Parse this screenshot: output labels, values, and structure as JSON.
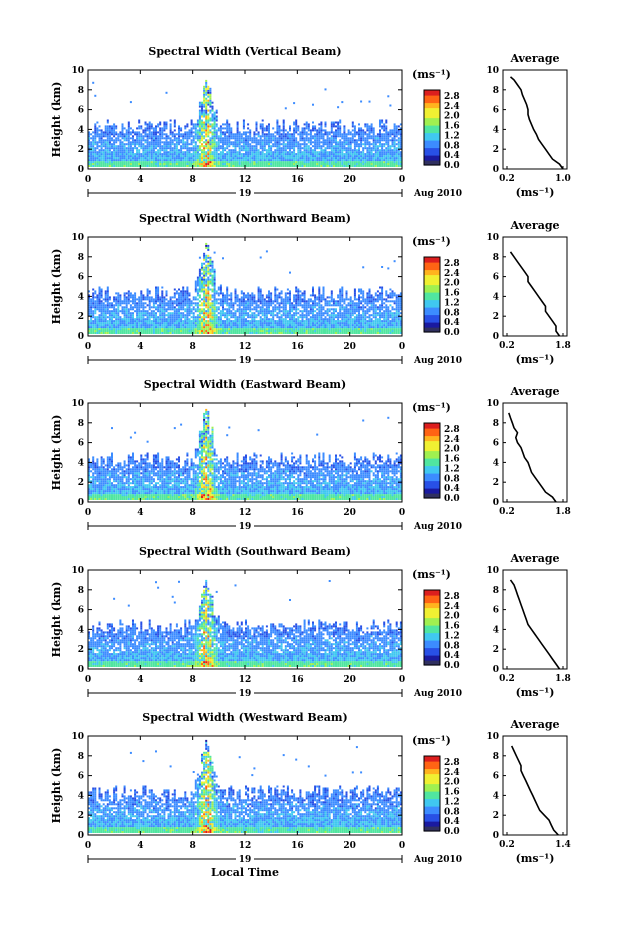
{
  "chart_data": [
    {
      "type": "heatmap",
      "title": "Spectral Width (Vertical Beam)",
      "ylabel": "Height (km)",
      "xticks": [
        "0",
        "4",
        "8",
        "12",
        "16",
        "20",
        "0"
      ],
      "yticks": [
        "0",
        "2",
        "4",
        "6",
        "8",
        "10"
      ],
      "xlim": [
        0,
        24
      ],
      "ylim": [
        0,
        10
      ],
      "day_label": "19",
      "date_label": "Aug 2010",
      "colorbar": {
        "unit": "(ms⁻¹)",
        "ticks": [
          "0.0",
          "0.4",
          "0.8",
          "1.2",
          "1.6",
          "2.0",
          "2.4",
          "2.8"
        ]
      },
      "profile": {
        "title": "Average",
        "xlabel": "(ms⁻¹)",
        "xticks": [
          "0.2",
          "1.0"
        ],
        "yticks": [
          "0",
          "2",
          "4",
          "6",
          "8",
          "10"
        ],
        "heights": [
          0,
          0.5,
          1,
          1.5,
          2,
          2.5,
          3,
          3.5,
          4,
          4.5,
          5,
          5.5,
          6,
          6.5,
          7,
          7.5,
          8,
          8.5,
          9,
          9.3
        ],
        "values": [
          1.0,
          0.95,
          0.85,
          0.8,
          0.75,
          0.7,
          0.65,
          0.62,
          0.58,
          0.55,
          0.52,
          0.5,
          0.5,
          0.48,
          0.45,
          0.42,
          0.4,
          0.35,
          0.3,
          0.25
        ]
      }
    },
    {
      "type": "heatmap",
      "title": "Spectral Width (Northward Beam)",
      "ylabel": "Height (km)",
      "xticks": [
        "0",
        "4",
        "8",
        "12",
        "16",
        "20",
        "0"
      ],
      "yticks": [
        "0",
        "2",
        "4",
        "6",
        "8",
        "10"
      ],
      "xlim": [
        0,
        24
      ],
      "ylim": [
        0,
        10
      ],
      "day_label": "19",
      "date_label": "Aug 2010",
      "colorbar": {
        "unit": "(ms⁻¹)",
        "ticks": [
          "0.0",
          "0.4",
          "0.8",
          "1.2",
          "1.6",
          "2.0",
          "2.4",
          "2.8"
        ]
      },
      "profile": {
        "title": "Average",
        "xlabel": "(ms⁻¹)",
        "xticks": [
          "0.2",
          "1.8"
        ],
        "yticks": [
          "0",
          "2",
          "4",
          "6",
          "8",
          "10"
        ],
        "heights": [
          0,
          0.5,
          1,
          1.5,
          2,
          2.5,
          3,
          3.5,
          4,
          4.5,
          5,
          5.5,
          6,
          6.5,
          7,
          7.5,
          8,
          8.5
        ],
        "values": [
          1.7,
          1.6,
          1.6,
          1.5,
          1.4,
          1.3,
          1.3,
          1.2,
          1.1,
          1.0,
          0.9,
          0.8,
          0.8,
          0.7,
          0.6,
          0.5,
          0.4,
          0.3
        ]
      }
    },
    {
      "type": "heatmap",
      "title": "Spectral Width (Eastward Beam)",
      "ylabel": "Height (km)",
      "xticks": [
        "0",
        "4",
        "8",
        "12",
        "16",
        "20",
        "0"
      ],
      "yticks": [
        "0",
        "2",
        "4",
        "6",
        "8",
        "10"
      ],
      "xlim": [
        0,
        24
      ],
      "ylim": [
        0,
        10
      ],
      "day_label": "19",
      "date_label": "Aug 2010",
      "colorbar": {
        "unit": "(ms⁻¹)",
        "ticks": [
          "0.0",
          "0.4",
          "0.8",
          "1.2",
          "1.6",
          "2.0",
          "2.4",
          "2.8"
        ]
      },
      "profile": {
        "title": "Average",
        "xlabel": "",
        "xticks": [
          "0.2",
          "1.8"
        ],
        "yticks": [
          "0",
          "2",
          "4",
          "6",
          "8",
          "10"
        ],
        "heights": [
          0,
          0.5,
          1,
          1.5,
          2,
          2.5,
          3,
          3.5,
          4,
          4.5,
          5,
          5.5,
          6,
          6.5,
          7,
          7.5,
          8,
          8.5,
          9
        ],
        "values": [
          1.6,
          1.5,
          1.3,
          1.2,
          1.1,
          1.0,
          0.9,
          0.85,
          0.8,
          0.7,
          0.65,
          0.6,
          0.5,
          0.45,
          0.5,
          0.4,
          0.35,
          0.3,
          0.25
        ]
      }
    },
    {
      "type": "heatmap",
      "title": "Spectral Width (Southward Beam)",
      "ylabel": "Height (km)",
      "xticks": [
        "0",
        "4",
        "8",
        "12",
        "16",
        "20",
        "0"
      ],
      "yticks": [
        "0",
        "2",
        "4",
        "6",
        "8",
        "10"
      ],
      "xlim": [
        0,
        24
      ],
      "ylim": [
        0,
        10
      ],
      "day_label": "19",
      "date_label": "Aug 2010",
      "colorbar": {
        "unit": "(ms⁻¹)",
        "ticks": [
          "0.0",
          "0.4",
          "0.8",
          "1.2",
          "1.6",
          "2.0",
          "2.4",
          "2.8"
        ]
      },
      "profile": {
        "title": "Average",
        "xlabel": "(ms⁻¹)",
        "xticks": [
          "0.2",
          "1.8"
        ],
        "yticks": [
          "0",
          "2",
          "4",
          "6",
          "8",
          "10"
        ],
        "heights": [
          0,
          0.5,
          1,
          1.5,
          2,
          2.5,
          3,
          3.5,
          4,
          4.5,
          5,
          5.5,
          6,
          6.5,
          7,
          7.5,
          8,
          8.5,
          9
        ],
        "values": [
          1.7,
          1.6,
          1.5,
          1.4,
          1.3,
          1.2,
          1.1,
          1.0,
          0.9,
          0.8,
          0.75,
          0.7,
          0.65,
          0.6,
          0.55,
          0.5,
          0.45,
          0.4,
          0.3
        ]
      }
    },
    {
      "type": "heatmap",
      "title": "Spectral Width (Westward Beam)",
      "ylabel": "Height (km)",
      "xlabel": "Local Time",
      "xticks": [
        "0",
        "4",
        "8",
        "12",
        "16",
        "20",
        "0"
      ],
      "yticks": [
        "0",
        "2",
        "4",
        "6",
        "8",
        "10"
      ],
      "xlim": [
        0,
        24
      ],
      "ylim": [
        0,
        10
      ],
      "day_label": "19",
      "date_label": "Aug 2010",
      "colorbar": {
        "unit": "(ms⁻¹)",
        "ticks": [
          "0.0",
          "0.4",
          "0.8",
          "1.2",
          "1.6",
          "2.0",
          "2.4",
          "2.8"
        ]
      },
      "profile": {
        "title": "Average",
        "xlabel": "(ms⁻¹)",
        "xticks": [
          "0.2",
          "1.4"
        ],
        "yticks": [
          "0",
          "2",
          "4",
          "6",
          "8",
          "10"
        ],
        "heights": [
          0,
          0.5,
          1,
          1.5,
          2,
          2.5,
          3,
          3.5,
          4,
          4.5,
          5,
          5.5,
          6,
          6.5,
          7,
          7.5,
          8,
          8.5,
          9
        ],
        "values": [
          1.3,
          1.2,
          1.15,
          1.1,
          1.0,
          0.9,
          0.85,
          0.8,
          0.75,
          0.7,
          0.65,
          0.6,
          0.55,
          0.5,
          0.5,
          0.45,
          0.4,
          0.35,
          0.3
        ]
      }
    }
  ],
  "colors": {
    "scale": [
      "#303060",
      "#1a1aa0",
      "#2850e6",
      "#3c8cff",
      "#40c8f0",
      "#50e6a0",
      "#a0f050",
      "#f0f032",
      "#ffb41e",
      "#ff6414",
      "#dc1e1e"
    ]
  }
}
